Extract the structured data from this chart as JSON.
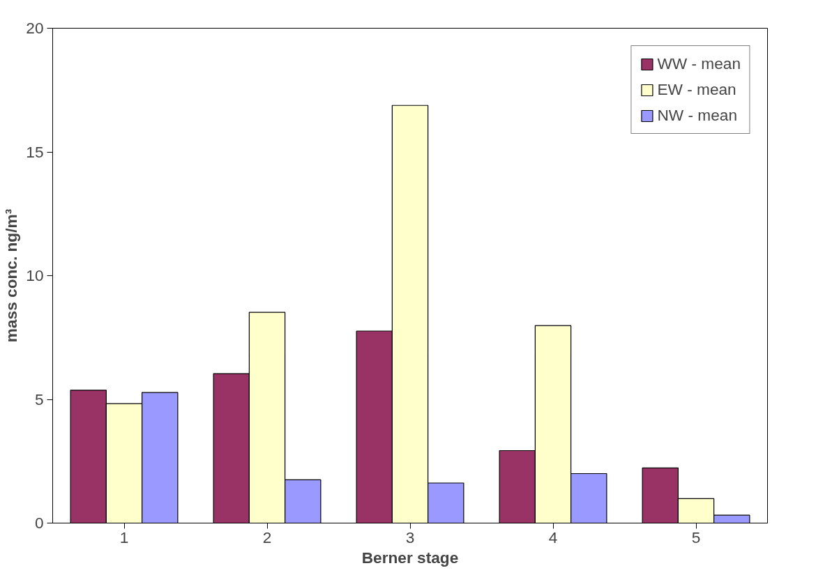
{
  "chart_data": {
    "type": "bar",
    "xlabel": "Berner stage",
    "ylabel": "mass conc. ng/m³",
    "categories": [
      "1",
      "2",
      "3",
      "4",
      "5"
    ],
    "series": [
      {
        "name": "WW - mean",
        "color": "#993366",
        "values": [
          5.37,
          6.04,
          7.76,
          2.93,
          2.23
        ]
      },
      {
        "name": "EW - mean",
        "color": "#ffffcc",
        "values": [
          4.83,
          8.52,
          16.88,
          7.98,
          0.99
        ]
      },
      {
        "name": "NW - mean",
        "color": "#9999ff",
        "values": [
          5.28,
          1.75,
          1.62,
          2.0,
          0.32
        ]
      }
    ],
    "ylim": [
      0,
      20
    ],
    "yticks": [
      0,
      5,
      10,
      15,
      20
    ],
    "grid": false,
    "legend": "top right"
  }
}
